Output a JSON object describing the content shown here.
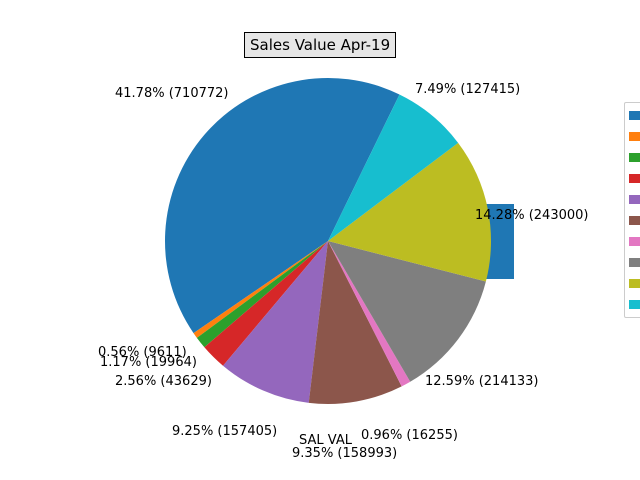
{
  "chart_data": {
    "type": "pie",
    "title": "Sales Value Apr-19",
    "series_label": "SAL VAL",
    "slices": [
      {
        "label": "41.78%  (710772)",
        "value": 710772,
        "percent": 41.78,
        "color": "#1f77b4"
      },
      {
        "label": "0.56%  (9611)",
        "value": 9611,
        "percent": 0.56,
        "color": "#ff7f0e"
      },
      {
        "label": "1.17%  (19964)",
        "value": 19964,
        "percent": 1.17,
        "color": "#2ca02c"
      },
      {
        "label": "2.56%  (43629)",
        "value": 43629,
        "percent": 2.56,
        "color": "#d62728"
      },
      {
        "label": "9.25%  (157405)",
        "value": 157405,
        "percent": 9.25,
        "color": "#9467bd"
      },
      {
        "label": "9.35%  (158993)",
        "value": 158993,
        "percent": 9.35,
        "color": "#8c564b"
      },
      {
        "label": "0.96%  (16255)",
        "value": 16255,
        "percent": 0.96,
        "color": "#e377c2"
      },
      {
        "label": "12.59%  (214133)",
        "value": 214133,
        "percent": 12.59,
        "color": "#7f7f7f"
      },
      {
        "label": "14.28%  (243000)",
        "value": 243000,
        "percent": 14.28,
        "color": "#bcbd22"
      },
      {
        "label": "7.49%  (127415)",
        "value": 127415,
        "percent": 7.49,
        "color": "#17becf"
      }
    ],
    "legend_placement": "right",
    "legend_entries": [
      "",
      "",
      "",
      "",
      "",
      "",
      "",
      "",
      "",
      ""
    ],
    "extra_bar": {
      "color": "#1f77b4"
    }
  }
}
